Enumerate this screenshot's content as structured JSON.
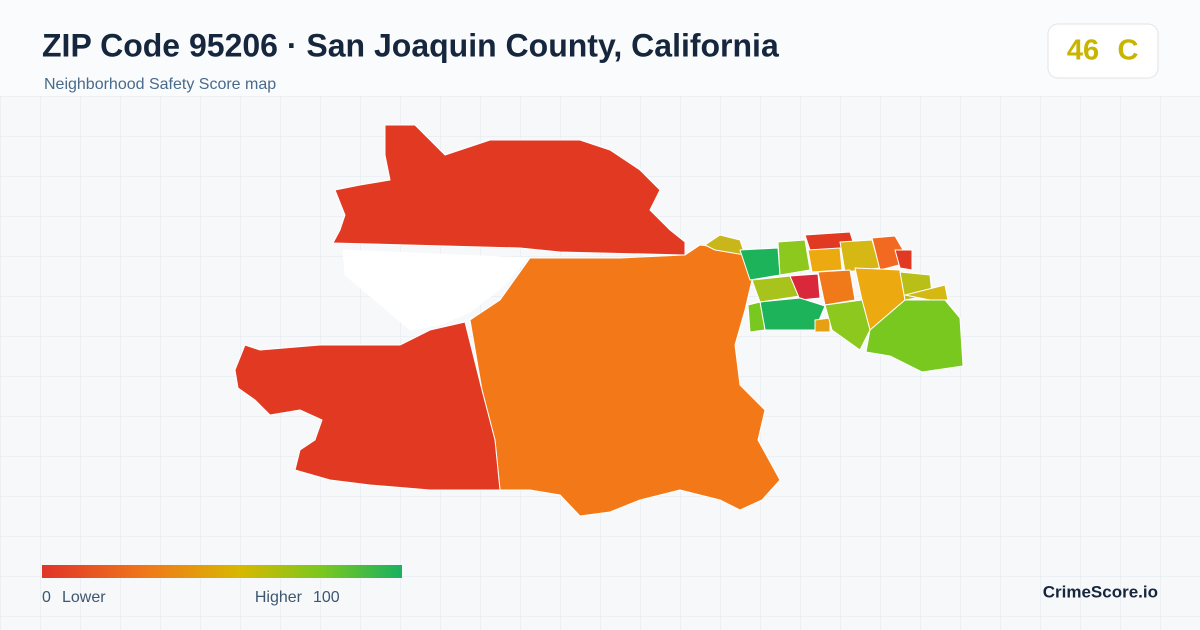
{
  "header": {
    "title": "ZIP Code 95206 · San Joaquin County, California",
    "subtitle": "Neighborhood Safety Score map"
  },
  "score": {
    "value": 46,
    "grade": "C"
  },
  "legend": {
    "min": 0,
    "min_label": "Lower",
    "max_label": "Higher",
    "max": 100
  },
  "brand": "CrimeScore.io"
}
